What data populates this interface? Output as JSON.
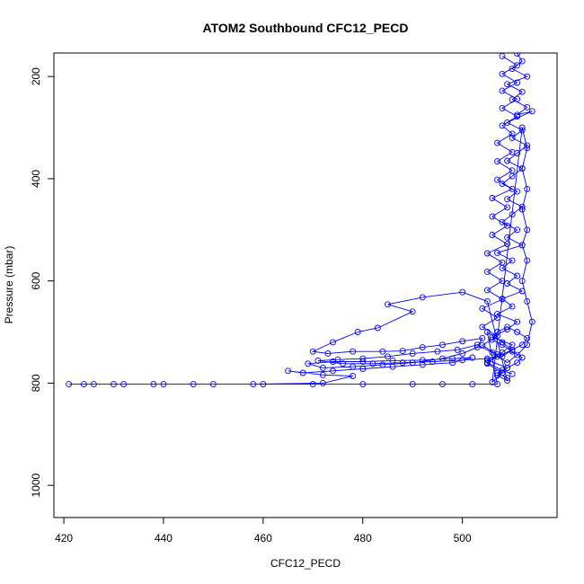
{
  "chart_data": {
    "type": "line",
    "title": "ATOM2 Southbound CFC12_PECD",
    "xlabel": "CFC12_PECD",
    "ylabel": "Pressure (mbar)",
    "xlim": [
      418,
      519
    ],
    "ylim": [
      1063,
      154
    ],
    "y_reversed": true,
    "xticks": [
      420,
      440,
      460,
      480,
      500
    ],
    "yticks": [
      200,
      400,
      600,
      800,
      1000
    ],
    "grid": false,
    "legend": "none",
    "series": [
      {
        "color": "#0000ff",
        "marker": "open-circle",
        "points": [
          [
            511,
            155
          ],
          [
            512,
            170
          ],
          [
            510,
            185
          ],
          [
            513,
            200
          ],
          [
            509,
            215
          ],
          [
            512,
            230
          ],
          [
            510,
            245
          ],
          [
            513,
            260
          ],
          [
            511,
            275
          ],
          [
            514,
            268
          ],
          [
            509,
            290
          ],
          [
            512,
            305
          ],
          [
            510,
            320
          ],
          [
            513,
            335
          ],
          [
            511,
            350
          ],
          [
            509,
            365
          ],
          [
            512,
            380
          ],
          [
            510,
            395
          ],
          [
            508,
            410
          ],
          [
            511,
            425
          ],
          [
            509,
            440
          ],
          [
            512,
            455
          ],
          [
            510,
            470
          ],
          [
            508,
            485
          ],
          [
            511,
            500
          ],
          [
            509,
            515
          ],
          [
            512,
            530
          ],
          [
            507,
            545
          ],
          [
            510,
            560
          ],
          [
            508,
            575
          ],
          [
            511,
            590
          ],
          [
            509,
            605
          ],
          [
            512,
            620
          ],
          [
            508,
            635
          ],
          [
            510,
            650
          ],
          [
            507,
            665
          ],
          [
            511,
            680
          ],
          [
            509,
            695
          ],
          [
            506,
            710
          ],
          [
            510,
            725
          ],
          [
            508,
            740
          ],
          [
            505,
            755
          ],
          [
            509,
            770
          ],
          [
            507,
            785
          ],
          [
            509,
            795
          ],
          [
            505,
            640
          ],
          [
            500,
            622
          ],
          [
            492,
            632
          ],
          [
            485,
            646
          ],
          [
            490,
            660
          ],
          [
            483,
            692
          ],
          [
            479,
            700
          ],
          [
            474,
            720
          ],
          [
            470,
            738
          ],
          [
            473,
            742
          ],
          [
            478,
            738
          ],
          [
            484,
            738
          ],
          [
            488,
            737
          ],
          [
            492,
            730
          ],
          [
            496,
            725
          ],
          [
            500,
            718
          ],
          [
            504,
            712
          ],
          [
            503,
            730
          ],
          [
            500,
            742
          ],
          [
            496,
            752
          ],
          [
            490,
            760
          ],
          [
            484,
            764
          ],
          [
            478,
            768
          ],
          [
            472,
            770
          ],
          [
            469,
            762
          ],
          [
            474,
            758
          ],
          [
            480,
            758
          ],
          [
            486,
            756
          ],
          [
            492,
            755
          ],
          [
            498,
            752
          ],
          [
            502,
            750
          ],
          [
            498,
            760
          ],
          [
            492,
            764
          ],
          [
            486,
            768
          ],
          [
            480,
            772
          ],
          [
            474,
            776
          ],
          [
            468,
            780
          ],
          [
            465,
            776
          ],
          [
            472,
            784
          ],
          [
            478,
            786
          ],
          [
            472,
            800
          ],
          [
            458,
            802
          ],
          [
            446,
            802
          ],
          [
            438,
            802
          ],
          [
            430,
            802
          ],
          [
            424,
            802
          ],
          [
            421,
            802
          ],
          [
            426,
            802
          ],
          [
            432,
            802
          ],
          [
            440,
            802
          ],
          [
            450,
            802
          ],
          [
            460,
            802
          ],
          [
            470,
            802
          ],
          [
            480,
            802
          ],
          [
            490,
            802
          ],
          [
            496,
            802
          ],
          [
            502,
            802
          ],
          [
            507,
            802
          ],
          [
            505,
            700
          ],
          [
            508,
            720
          ],
          [
            510,
            735
          ],
          [
            507,
            748
          ],
          [
            505,
            760
          ],
          [
            508,
            775
          ],
          [
            510,
            782
          ]
        ]
      },
      {
        "color": "#0000ff",
        "marker": "open-circle",
        "points": [
          [
            508,
            160
          ],
          [
            511,
            178
          ],
          [
            508,
            195
          ],
          [
            511,
            212
          ],
          [
            508,
            228
          ],
          [
            511,
            244
          ],
          [
            508,
            262
          ],
          [
            511,
            278
          ],
          [
            508,
            296
          ],
          [
            510,
            312
          ],
          [
            507,
            330
          ],
          [
            510,
            348
          ],
          [
            507,
            366
          ],
          [
            510,
            384
          ],
          [
            507,
            402
          ],
          [
            510,
            420
          ],
          [
            506,
            438
          ],
          [
            509,
            456
          ],
          [
            506,
            474
          ],
          [
            509,
            492
          ],
          [
            506,
            510
          ],
          [
            509,
            528
          ],
          [
            505,
            546
          ],
          [
            508,
            564
          ],
          [
            505,
            582
          ],
          [
            508,
            600
          ],
          [
            505,
            618
          ],
          [
            508,
            636
          ],
          [
            504,
            654
          ],
          [
            507,
            672
          ],
          [
            504,
            690
          ],
          [
            507,
            708
          ],
          [
            504,
            726
          ],
          [
            507,
            744
          ],
          [
            505,
            762
          ],
          [
            508,
            780
          ],
          [
            506,
            798
          ],
          [
            512,
            300
          ],
          [
            513,
            340
          ],
          [
            512,
            380
          ],
          [
            513,
            420
          ],
          [
            512,
            460
          ],
          [
            513,
            500
          ],
          [
            512,
            530
          ],
          [
            513,
            560
          ],
          [
            512,
            600
          ],
          [
            513,
            640
          ],
          [
            514,
            680
          ],
          [
            513,
            725
          ],
          [
            511,
            745
          ],
          [
            509,
            760
          ],
          [
            506,
            740
          ],
          [
            503,
            725
          ],
          [
            499,
            735
          ],
          [
            495,
            738
          ],
          [
            490,
            742
          ],
          [
            485,
            748
          ],
          [
            480,
            752
          ],
          [
            475,
            754
          ],
          [
            471,
            756
          ],
          [
            476,
            762
          ],
          [
            482,
            762
          ],
          [
            488,
            760
          ],
          [
            494,
            758
          ],
          [
            500,
            755
          ],
          [
            505,
            752
          ],
          [
            508,
            748
          ],
          [
            510,
            735
          ],
          [
            512,
            725
          ],
          [
            513,
            712
          ],
          [
            511,
            700
          ],
          [
            509,
            690
          ],
          [
            507,
            700
          ],
          [
            506,
            715
          ],
          [
            508,
            725
          ],
          [
            510,
            738
          ],
          [
            512,
            750
          ],
          [
            511,
            760
          ],
          [
            509,
            770
          ],
          [
            507,
            780
          ],
          [
            509,
            790
          ]
        ]
      }
    ]
  }
}
